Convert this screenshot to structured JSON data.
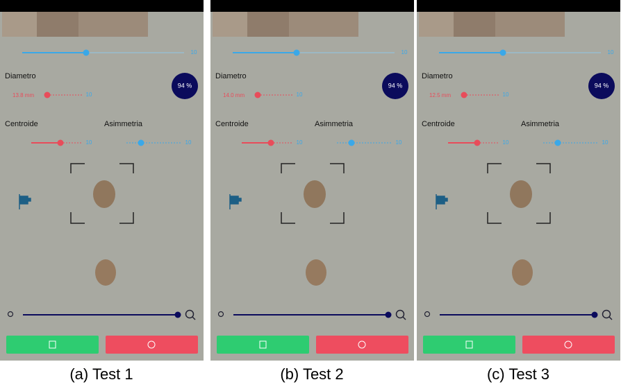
{
  "panels": [
    {
      "top_max": "10",
      "diameter_label": "Diametro",
      "diameter_value": "13.8 mm",
      "diameter_max": "10",
      "badge": "94 %",
      "centroid_label": "Centroide",
      "centroid_max": "10",
      "asymmetry_label": "Asimmetria",
      "asymmetry_max": "10",
      "caption": "(a) Test 1"
    },
    {
      "top_max": "10",
      "diameter_label": "Diametro",
      "diameter_value": "14.0 mm",
      "diameter_max": "10",
      "badge": "94 %",
      "centroid_label": "Centroide",
      "centroid_max": "10",
      "asymmetry_label": "Asimmetria",
      "asymmetry_max": "10",
      "caption": "(b) Test 2"
    },
    {
      "top_max": "10",
      "diameter_label": "Diametro",
      "diameter_value": "12.5 mm",
      "diameter_max": "10",
      "badge": "94 %",
      "centroid_label": "Centroide",
      "centroid_max": "10",
      "asymmetry_label": "Asimmetria",
      "asymmetry_max": "10",
      "caption": "(c) Test 3"
    }
  ]
}
